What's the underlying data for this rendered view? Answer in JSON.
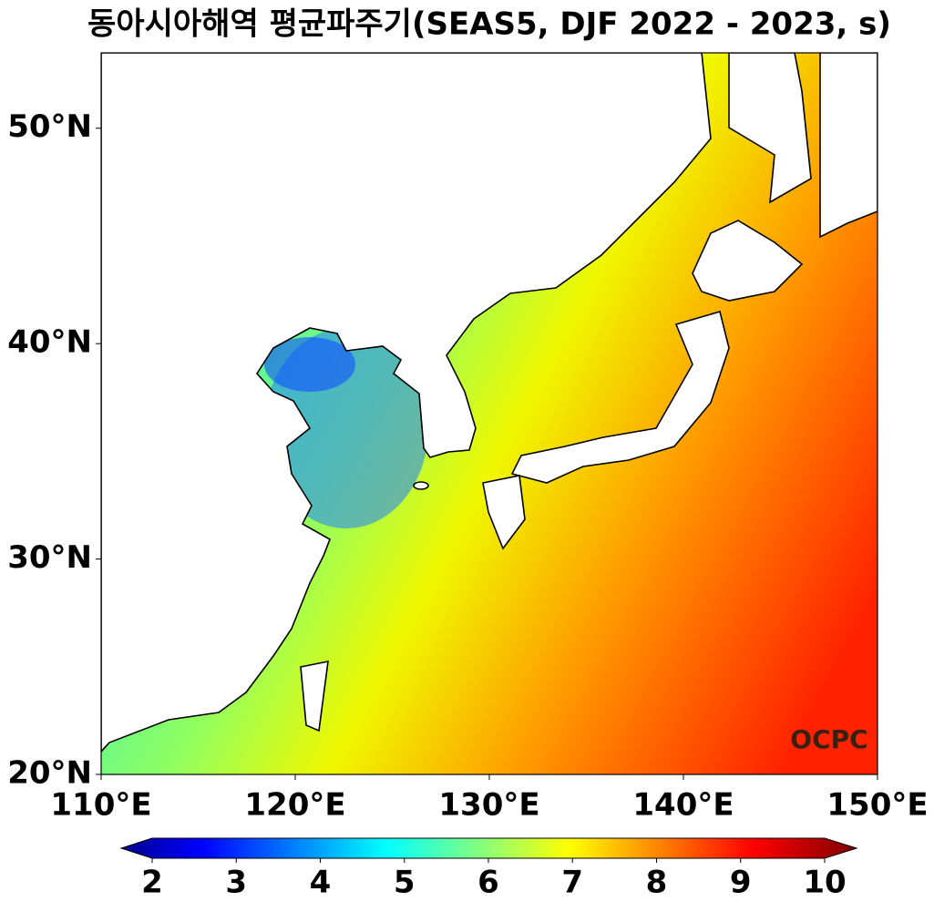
{
  "title": "동아시아해역 평균파주기(SEAS5, DJF 2022 - 2023, s)",
  "map": {
    "lonlim": [
      110,
      150
    ],
    "latlim": [
      20,
      53.5
    ],
    "lon_ticks": [
      {
        "value": 110,
        "label": "110°E"
      },
      {
        "value": 120,
        "label": "120°E"
      },
      {
        "value": 130,
        "label": "130°E"
      },
      {
        "value": 140,
        "label": "140°E"
      },
      {
        "value": 150,
        "label": "150°E"
      }
    ],
    "lat_ticks": [
      {
        "value": 20,
        "label": "20°N"
      },
      {
        "value": 30,
        "label": "30°N"
      },
      {
        "value": 40,
        "label": "40°N"
      },
      {
        "value": 50,
        "label": "50°N"
      }
    ]
  },
  "colorbar": {
    "colormap": "jet",
    "extend": "both",
    "lim": [
      2,
      10
    ],
    "ticks": [
      2,
      3,
      4,
      5,
      6,
      7,
      8,
      9,
      10
    ]
  },
  "watermark": "OCPC"
}
